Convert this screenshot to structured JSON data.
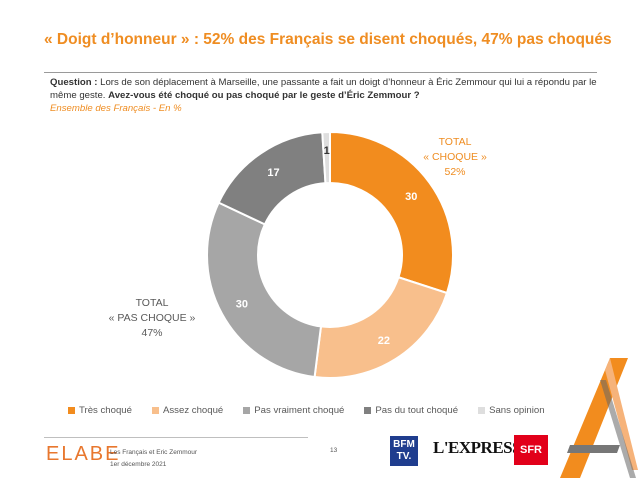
{
  "header": {
    "title": "« Doigt d’honneur » : 52% des Français se disent choqués, 47% pas choqués"
  },
  "question": {
    "label": "Question :",
    "text": " Lors de son déplacement à Marseille, une passante a fait un doigt d’honneur à Éric Zemmour qui lui a répondu par le même geste. ",
    "bold_text": "Avez-vous été choqué ou pas choqué par le geste d’Éric Zemmour ?",
    "subtitle": "Ensemble des Français - En %"
  },
  "chart_data": {
    "type": "pie",
    "variant": "donut",
    "categories": [
      "Très choqué",
      "Assez choqué",
      "Pas vraiment choqué",
      "Pas du tout choqué",
      "Sans opinion"
    ],
    "values": [
      30,
      22,
      30,
      17,
      1
    ],
    "colors": [
      "#f28c1e",
      "#f8bf8c",
      "#a6a6a6",
      "#808080",
      "#dedede"
    ],
    "label_colors": [
      "#ffffff",
      "#ffffff",
      "#ffffff",
      "#ffffff",
      "#333333"
    ],
    "legend_position": "bottom",
    "groups": [
      {
        "line1": "TOTAL",
        "line2": "« CHOQUE »",
        "line3": "52%",
        "color": "#ef8d22"
      },
      {
        "line1": "TOTAL",
        "line2": "« PAS CHOQUE »",
        "line3": "47%",
        "color": "#595959"
      }
    ]
  },
  "footer": {
    "logo": "ELABE",
    "line1": "Les Français et Eric Zemmour",
    "line2": "1er décembre 2021",
    "page": "13",
    "partner1": "BFM TV.",
    "partner2": "L'EXPRESS",
    "partner3": "SFR"
  }
}
